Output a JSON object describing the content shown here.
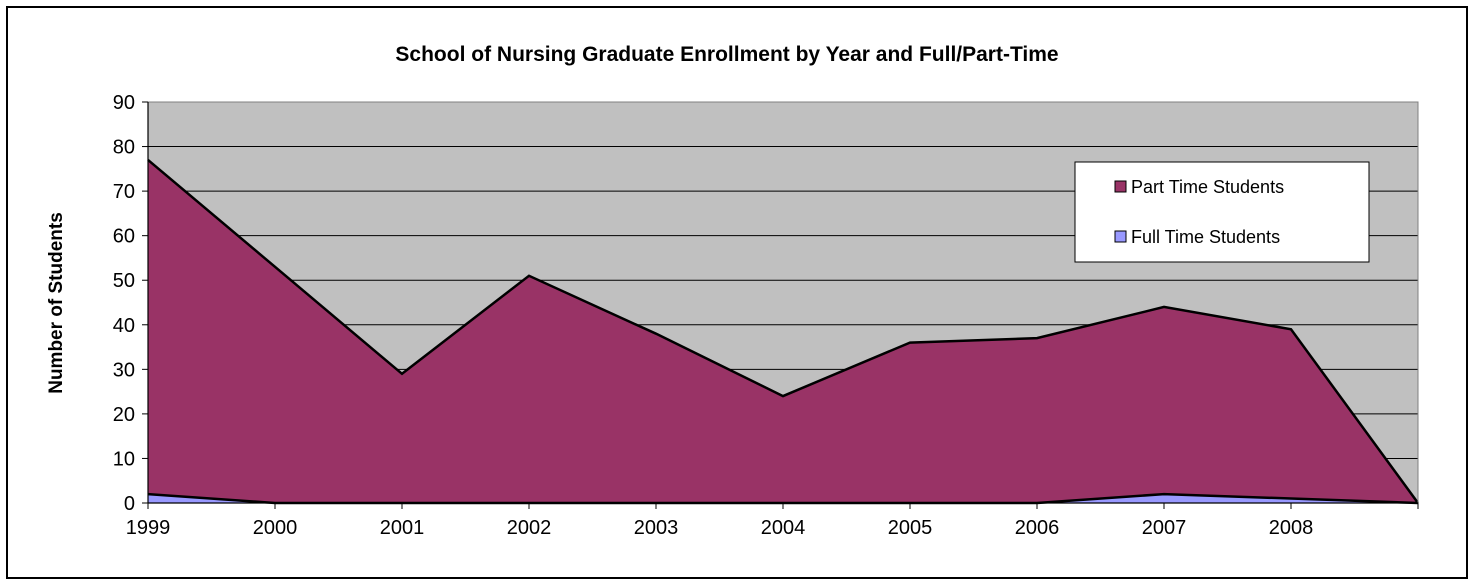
{
  "chart_data": {
    "type": "area",
    "stacked": true,
    "title": "School of Nursing Graduate Enrollment by Year and Full/Part-Time",
    "xlabel": "",
    "ylabel": "Number of Students",
    "x": [
      "1999",
      "2000",
      "2001",
      "2002",
      "2003",
      "2004",
      "2005",
      "2006",
      "2007",
      "2008",
      ""
    ],
    "ylim": [
      0,
      90
    ],
    "yticks": [
      "0",
      "10",
      "20",
      "30",
      "40",
      "50",
      "60",
      "70",
      "80",
      "90"
    ],
    "grid": true,
    "legend_position": "top-right",
    "series": [
      {
        "name": "Full Time Students",
        "color": "#9999ff",
        "values": [
          2,
          0,
          0,
          0,
          0,
          0,
          0,
          0,
          2,
          1,
          0
        ]
      },
      {
        "name": "Part Time Students",
        "color": "#993366",
        "values": [
          75,
          53,
          29,
          51,
          38,
          24,
          36,
          37,
          42,
          38,
          0
        ]
      }
    ],
    "plot_background": "#c0c0c0",
    "legend_order": [
      "Part Time Students",
      "Full Time Students"
    ]
  }
}
